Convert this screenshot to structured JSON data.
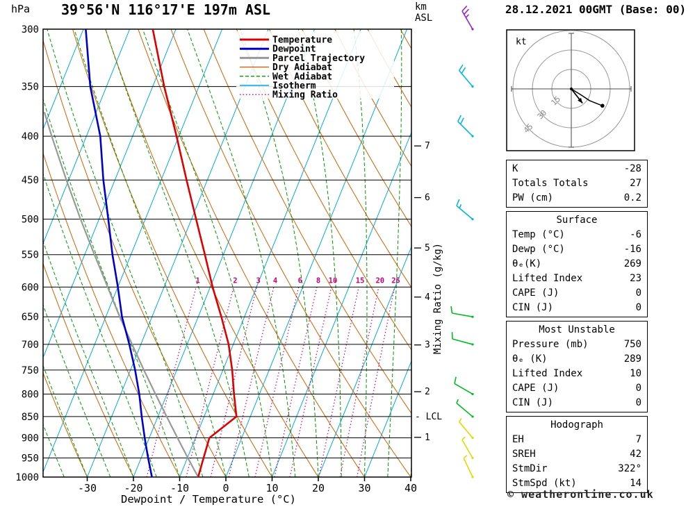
{
  "header": {
    "title": "39°56'N 116°17'E 197m ASL",
    "date_title": "28.12.2021 00GMT (Base: 00)"
  },
  "axes": {
    "pressure_unit": "hPa",
    "km_axis": [
      "km",
      "ASL"
    ],
    "right_axis_label": "Mixing Ratio (g/kg)",
    "xlabel": "Dewpoint / Temperature (°C)",
    "lcl_label": "LCL"
  },
  "legend": [
    {
      "label": "Temperature",
      "color": "#dd0000",
      "style": "solid",
      "width": 3
    },
    {
      "label": "Dewpoint",
      "color": "#0000cc",
      "style": "solid",
      "width": 3
    },
    {
      "label": "Parcel Trajectory",
      "color": "#999999",
      "style": "solid",
      "width": 3
    },
    {
      "label": "Dry Adiabat",
      "color": "#d06000",
      "style": "solid",
      "width": 1.4
    },
    {
      "label": "Wet Adiabat",
      "color": "#009900",
      "style": "dashed",
      "width": 1.4
    },
    {
      "label": "Isotherm",
      "color": "#00aadd",
      "style": "solid",
      "width": 1.4
    },
    {
      "label": "Mixing Ratio",
      "color": "#cc0077",
      "style": "dotted",
      "width": 1.4
    }
  ],
  "chart_data": {
    "type": "skew-t-log-p sounding",
    "title": "39°56'N 116°17'E 197m ASL",
    "xlabel": "Dewpoint / Temperature (°C)",
    "ylabel": "hPa",
    "x_ticks": [
      -30,
      -20,
      -10,
      0,
      10,
      20,
      30,
      40
    ],
    "pressure_levels": [
      300,
      350,
      400,
      450,
      500,
      550,
      600,
      650,
      700,
      750,
      800,
      850,
      900,
      950,
      1000
    ],
    "km_ticks": [
      1,
      2,
      3,
      4,
      5,
      6,
      7
    ],
    "lcl_pressure": 850,
    "mixing_ratio_values": [
      1,
      2,
      3,
      4,
      6,
      8,
      10,
      15,
      20,
      25
    ],
    "temperature_profile": [
      [
        1000,
        -6
      ],
      [
        950,
        -6.5
      ],
      [
        900,
        -7
      ],
      [
        850,
        -3
      ],
      [
        800,
        -5.5
      ],
      [
        750,
        -8
      ],
      [
        700,
        -11
      ],
      [
        650,
        -15
      ],
      [
        600,
        -19.5
      ],
      [
        550,
        -24
      ],
      [
        500,
        -29
      ],
      [
        450,
        -34.5
      ],
      [
        400,
        -40.5
      ],
      [
        350,
        -47.5
      ],
      [
        300,
        -55
      ]
    ],
    "dewpoint_profile": [
      [
        1000,
        -16
      ],
      [
        950,
        -18.5
      ],
      [
        900,
        -21
      ],
      [
        850,
        -23.5
      ],
      [
        800,
        -26
      ],
      [
        750,
        -29
      ],
      [
        700,
        -32.5
      ],
      [
        650,
        -36.5
      ],
      [
        600,
        -40
      ],
      [
        550,
        -44
      ],
      [
        500,
        -48
      ],
      [
        450,
        -52.5
      ],
      [
        400,
        -57
      ],
      [
        350,
        -63.5
      ],
      [
        300,
        -69.5
      ]
    ],
    "parcel_profile": [
      [
        1000,
        -6
      ],
      [
        950,
        -9.9
      ],
      [
        900,
        -13.9
      ],
      [
        850,
        -18.1
      ],
      [
        800,
        -22.5
      ],
      [
        750,
        -27.1
      ],
      [
        700,
        -31.9
      ],
      [
        650,
        -37
      ],
      [
        600,
        -42.2
      ],
      [
        550,
        -47.9
      ],
      [
        500,
        -54
      ],
      [
        450,
        -60.5
      ],
      [
        400,
        -67.5
      ],
      [
        375,
        -71.2
      ]
    ],
    "wind_barbs": [
      {
        "p": 300,
        "dir": 330,
        "spd": 25,
        "color": "#9922cc"
      },
      {
        "p": 350,
        "dir": 320,
        "spd": 20,
        "color": "#00b8d8"
      },
      {
        "p": 400,
        "dir": 315,
        "spd": 20,
        "color": "#00b8d8"
      },
      {
        "p": 500,
        "dir": 310,
        "spd": 15,
        "color": "#00b8d8"
      },
      {
        "p": 650,
        "dir": 280,
        "spd": 10,
        "color": "#00bb22"
      },
      {
        "p": 700,
        "dir": 285,
        "spd": 10,
        "color": "#00bb22"
      },
      {
        "p": 800,
        "dir": 300,
        "spd": 10,
        "color": "#00bb22"
      },
      {
        "p": 850,
        "dir": 310,
        "spd": 8,
        "color": "#00bb22"
      },
      {
        "p": 900,
        "dir": 320,
        "spd": 8,
        "color": "#dddd00"
      },
      {
        "p": 950,
        "dir": 330,
        "spd": 6,
        "color": "#dddd00"
      },
      {
        "p": 1000,
        "dir": 335,
        "spd": 5,
        "color": "#dddd00"
      }
    ],
    "colors": {
      "temperature": "#dd0000",
      "dewpoint": "#0000cc",
      "parcel": "#999999",
      "dry_adiabat": "#d06000",
      "wet_adiabat": "#009900",
      "isotherm": "#00aadd",
      "mixing_ratio": "#cc0077",
      "grid": "#000000"
    }
  },
  "hodograph": {
    "unit_label": "kt",
    "rings": [
      15,
      30,
      45
    ],
    "trace_kt": [
      [
        0,
        0
      ],
      [
        8,
        5
      ],
      [
        14,
        9
      ],
      [
        24,
        13
      ]
    ],
    "storm_motion": {
      "dir": 322,
      "spd": 14
    }
  },
  "tables": [
    {
      "header": null,
      "rows": [
        [
          "K",
          "-28"
        ],
        [
          "Totals Totals",
          "27"
        ],
        [
          "PW (cm)",
          "0.2"
        ]
      ]
    },
    {
      "header": "Surface",
      "rows": [
        [
          "Temp (°C)",
          "-6"
        ],
        [
          "Dewp (°C)",
          "-16"
        ],
        [
          "θₑ(K)",
          "269"
        ],
        [
          "Lifted Index",
          "23"
        ],
        [
          "CAPE (J)",
          "0"
        ],
        [
          "CIN (J)",
          "0"
        ]
      ]
    },
    {
      "header": "Most Unstable",
      "rows": [
        [
          "Pressure (mb)",
          "750"
        ],
        [
          "θₑ (K)",
          "289"
        ],
        [
          "Lifted Index",
          "10"
        ],
        [
          "CAPE (J)",
          "0"
        ],
        [
          "CIN (J)",
          "0"
        ]
      ]
    },
    {
      "header": "Hodograph",
      "rows": [
        [
          "EH",
          "7"
        ],
        [
          "SREH",
          "42"
        ],
        [
          "StmDir",
          "322°"
        ],
        [
          "StmSpd (kt)",
          "14"
        ]
      ]
    }
  ],
  "footer": {
    "copyright": "© weatheronline.co.uk"
  }
}
